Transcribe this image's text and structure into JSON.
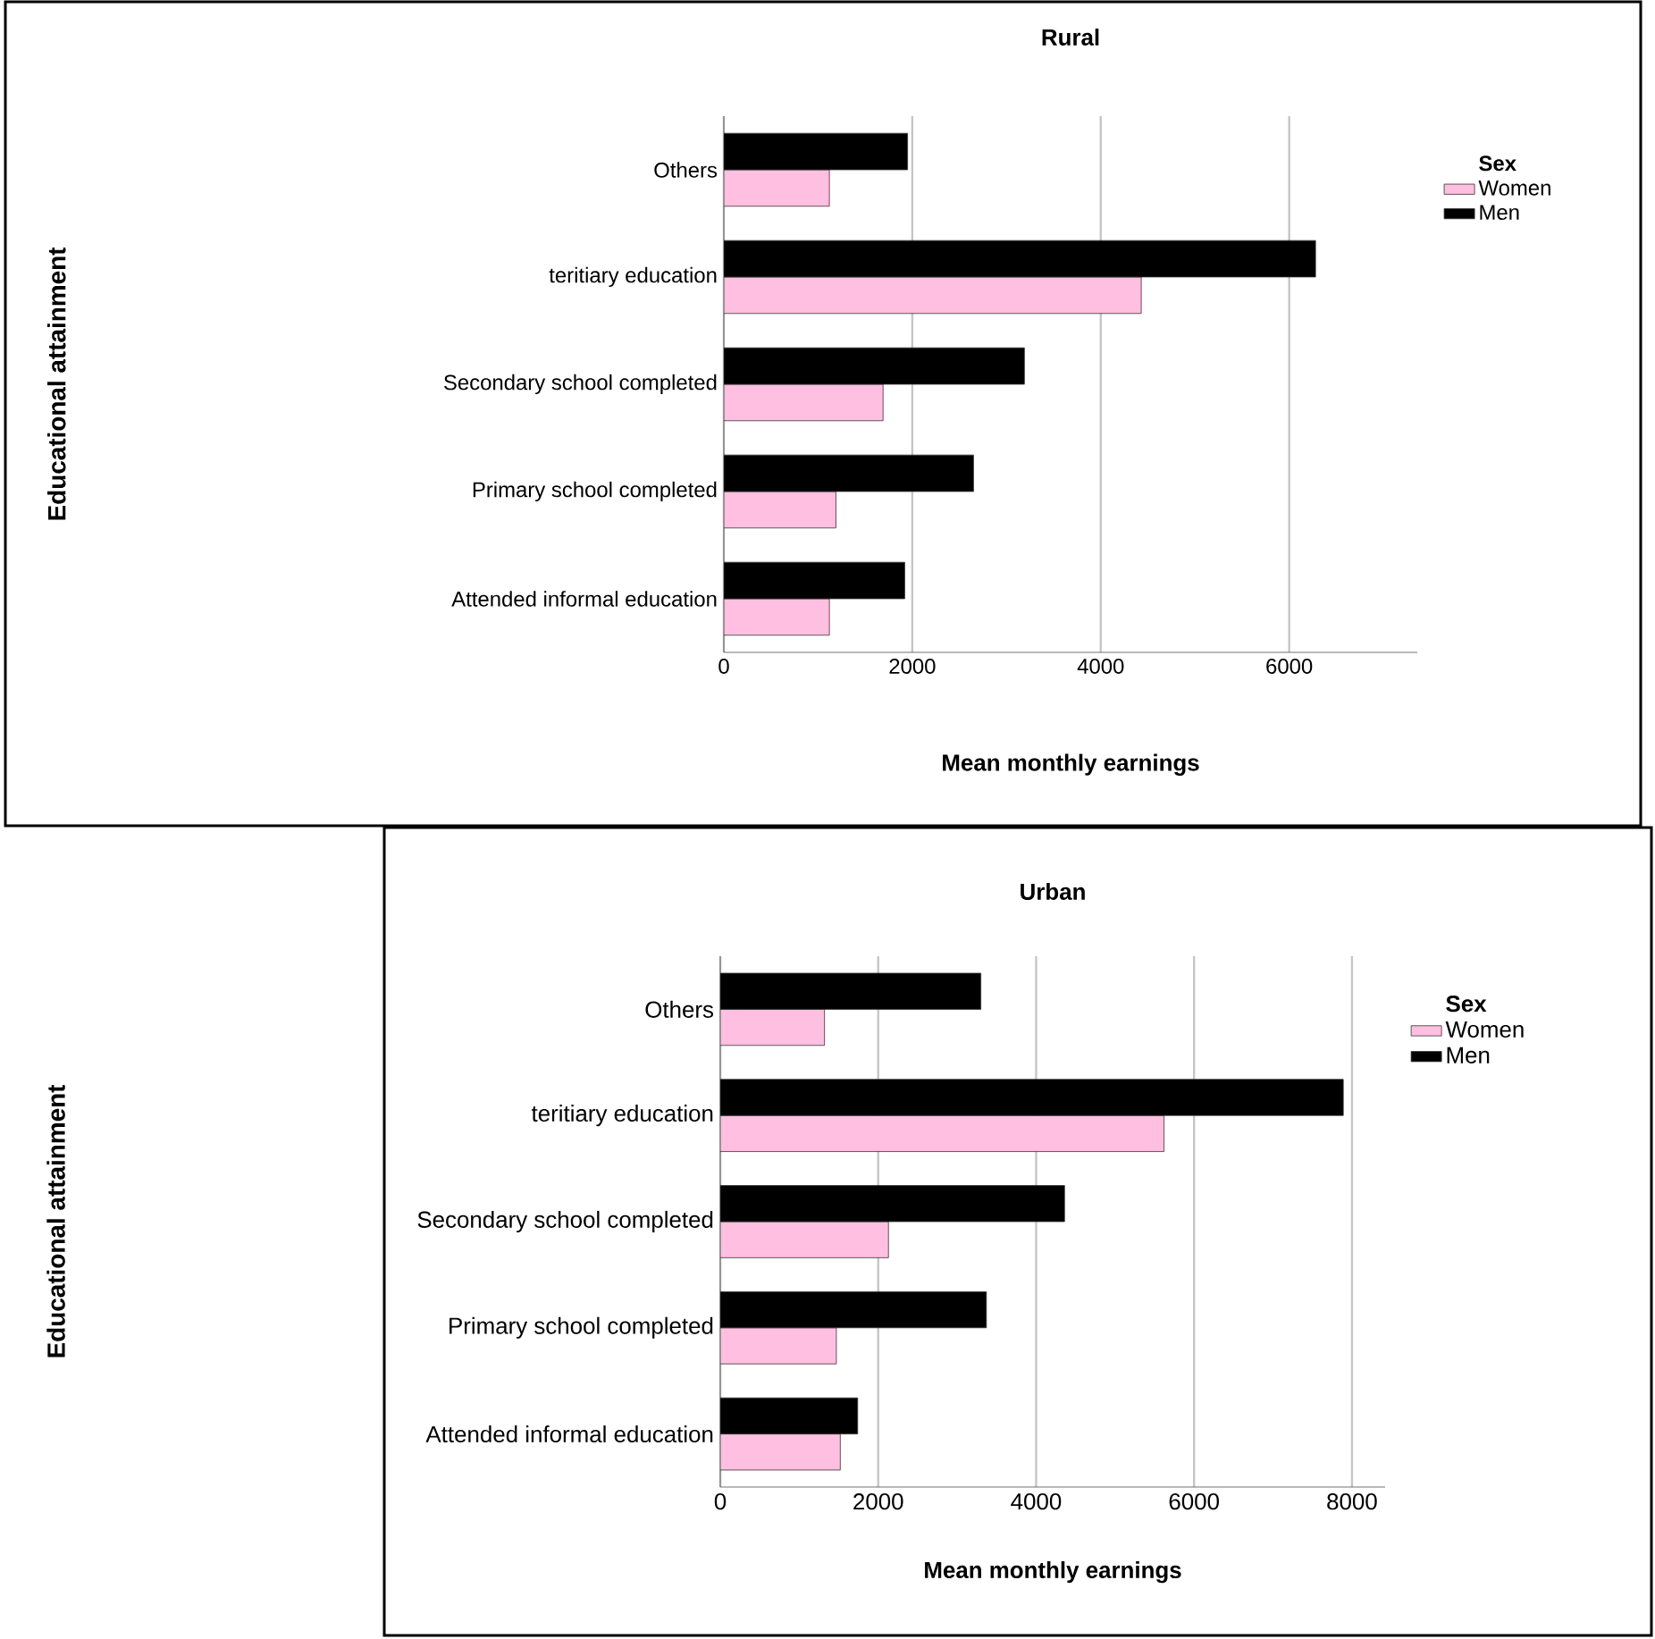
{
  "chart_data": [
    {
      "type": "bar",
      "orientation": "horizontal",
      "title": "Rural",
      "xlabel": "Mean monthly earnings",
      "ylabel": "Educational attainment",
      "legend_title": "Sex",
      "categories": [
        "Others",
        "teritiary education",
        "Secondary school completed",
        "Primary school completed",
        "Attended informal education"
      ],
      "series": [
        {
          "name": "Women",
          "color": "#ffbfe0",
          "values": [
            1120,
            4430,
            1690,
            1190,
            1120
          ]
        },
        {
          "name": "Men",
          "color": "#000000",
          "values": [
            1950,
            6280,
            3190,
            2650,
            1920
          ]
        }
      ],
      "xlim": [
        0,
        7360
      ],
      "xticks": [
        0,
        2000,
        4000,
        6000
      ],
      "grid": "x",
      "legend": "right"
    },
    {
      "type": "bar",
      "orientation": "horizontal",
      "title": "Urban",
      "xlabel": "Mean monthly earnings",
      "ylabel": "Educational attainment",
      "legend_title": "Sex",
      "categories": [
        "Others",
        "teritiary education",
        "Secondary school completed",
        "Primary school completed",
        "Attended informal education"
      ],
      "series": [
        {
          "name": "Women",
          "color": "#ffbfe0",
          "values": [
            1320,
            5620,
            2130,
            1470,
            1520
          ]
        },
        {
          "name": "Men",
          "color": "#000000",
          "values": [
            3300,
            7890,
            4360,
            3370,
            1740
          ]
        }
      ],
      "xlim": [
        0,
        8420
      ],
      "xticks": [
        0,
        2000,
        4000,
        6000,
        8000
      ],
      "grid": "x",
      "legend": "right"
    }
  ]
}
